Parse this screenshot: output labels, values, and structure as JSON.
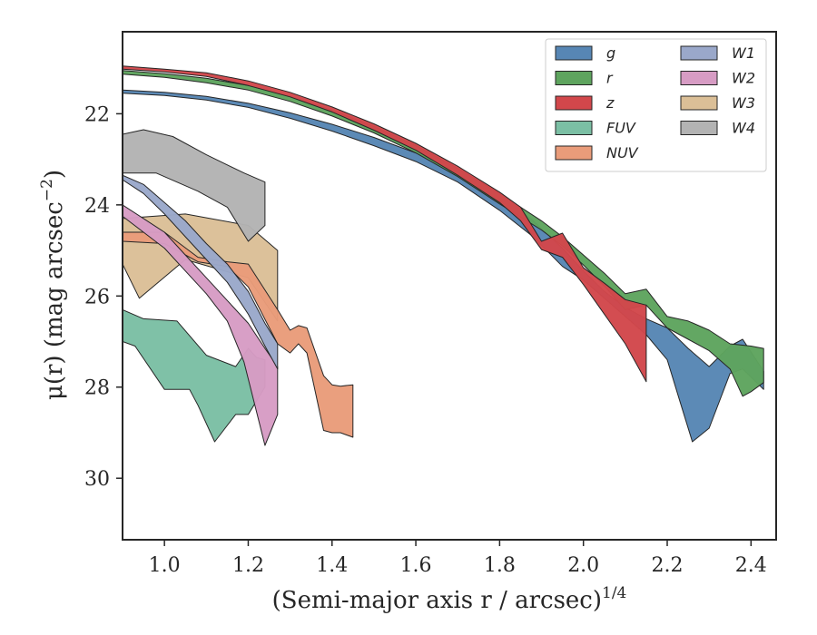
{
  "chart_data": {
    "type": "area",
    "xlabel": "(Semi-major axis r / arcsec)",
    "xlabel_sup": "1/4",
    "ylabel": "μ(r) (mag arcsec",
    "ylabel_sup": "−2",
    "ylabel_end": ")",
    "xlim": [
      0.9,
      2.46
    ],
    "ylim": [
      31.35,
      20.2
    ],
    "y_inverted": true,
    "grid": false,
    "legend_position": "top-right",
    "legend_columns": 2,
    "xticks": [
      1.0,
      1.2,
      1.4,
      1.6,
      1.8,
      2.0,
      2.2,
      2.4
    ],
    "xtick_labels": [
      "1.0",
      "1.2",
      "1.4",
      "1.6",
      "1.8",
      "2.0",
      "2.2",
      "2.4"
    ],
    "yticks": [
      22,
      24,
      26,
      28,
      30
    ],
    "ytick_labels": [
      "22",
      "24",
      "26",
      "28",
      "30"
    ],
    "series": [
      {
        "name": "W3",
        "color": "#dbbf97",
        "upper": [
          [
            0.9,
            24.3
          ],
          [
            1.05,
            24.2
          ],
          [
            1.2,
            24.45
          ],
          [
            1.27,
            25.0
          ]
        ],
        "lower": [
          [
            0.9,
            25.3
          ],
          [
            0.94,
            26.05
          ],
          [
            1.05,
            25.2
          ],
          [
            1.2,
            25.6
          ],
          [
            1.27,
            26.55
          ]
        ]
      },
      {
        "name": "W4",
        "color": "#b3b3b3",
        "upper": [
          [
            0.9,
            22.45
          ],
          [
            0.95,
            22.35
          ],
          [
            1.02,
            22.5
          ],
          [
            1.1,
            22.9
          ],
          [
            1.19,
            23.3
          ],
          [
            1.24,
            23.5
          ]
        ],
        "lower": [
          [
            0.9,
            23.3
          ],
          [
            0.98,
            23.3
          ],
          [
            1.08,
            23.7
          ],
          [
            1.15,
            24.05
          ],
          [
            1.2,
            24.8
          ],
          [
            1.24,
            24.45
          ]
        ]
      },
      {
        "name": "FUV",
        "color": "#7bbfa4",
        "upper": [
          [
            0.9,
            26.3
          ],
          [
            0.95,
            26.5
          ],
          [
            1.03,
            26.55
          ],
          [
            1.1,
            27.3
          ],
          [
            1.17,
            27.55
          ],
          [
            1.2,
            27.15
          ],
          [
            1.22,
            27.35
          ],
          [
            1.24,
            27.4
          ]
        ],
        "lower": [
          [
            0.9,
            27.0
          ],
          [
            0.93,
            27.1
          ],
          [
            1.0,
            28.05
          ],
          [
            1.06,
            28.05
          ],
          [
            1.08,
            28.4
          ],
          [
            1.12,
            29.2
          ],
          [
            1.17,
            28.6
          ],
          [
            1.2,
            28.6
          ],
          [
            1.24,
            28.0
          ]
        ]
      },
      {
        "name": "NUV",
        "color": "#e99c7a",
        "upper": [
          [
            0.9,
            24.6
          ],
          [
            1.0,
            24.6
          ],
          [
            1.08,
            25.15
          ],
          [
            1.15,
            25.25
          ],
          [
            1.2,
            25.3
          ],
          [
            1.27,
            26.3
          ],
          [
            1.3,
            26.75
          ],
          [
            1.32,
            26.65
          ],
          [
            1.34,
            26.7
          ],
          [
            1.38,
            27.75
          ],
          [
            1.4,
            27.95
          ],
          [
            1.42,
            27.98
          ],
          [
            1.45,
            27.95
          ]
        ],
        "lower": [
          [
            0.9,
            24.8
          ],
          [
            1.0,
            24.85
          ],
          [
            1.08,
            25.25
          ],
          [
            1.15,
            25.35
          ],
          [
            1.2,
            25.8
          ],
          [
            1.27,
            27.05
          ],
          [
            1.3,
            27.25
          ],
          [
            1.32,
            27.05
          ],
          [
            1.34,
            27.25
          ],
          [
            1.38,
            28.95
          ],
          [
            1.4,
            29.0
          ],
          [
            1.42,
            29.0
          ],
          [
            1.45,
            29.1
          ]
        ]
      },
      {
        "name": "W2",
        "color": "#d79cc4",
        "upper": [
          [
            0.9,
            24.0
          ],
          [
            0.95,
            24.3
          ],
          [
            1.0,
            24.6
          ],
          [
            1.05,
            25.1
          ],
          [
            1.1,
            25.6
          ],
          [
            1.15,
            26.1
          ],
          [
            1.2,
            26.6
          ],
          [
            1.24,
            27.15
          ],
          [
            1.27,
            27.55
          ]
        ],
        "lower": [
          [
            0.9,
            24.25
          ],
          [
            0.95,
            24.6
          ],
          [
            1.0,
            24.95
          ],
          [
            1.05,
            25.45
          ],
          [
            1.1,
            25.95
          ],
          [
            1.15,
            26.55
          ],
          [
            1.19,
            27.45
          ],
          [
            1.22,
            28.55
          ],
          [
            1.24,
            29.28
          ],
          [
            1.27,
            28.6
          ]
        ]
      },
      {
        "name": "W1",
        "color": "#9aa8ca",
        "upper": [
          [
            0.9,
            23.35
          ],
          [
            0.95,
            23.55
          ],
          [
            1.0,
            23.95
          ],
          [
            1.05,
            24.35
          ],
          [
            1.1,
            24.85
          ],
          [
            1.15,
            25.3
          ],
          [
            1.2,
            25.9
          ],
          [
            1.24,
            26.6
          ],
          [
            1.27,
            27.05
          ]
        ],
        "lower": [
          [
            0.9,
            23.45
          ],
          [
            0.95,
            23.75
          ],
          [
            1.0,
            24.2
          ],
          [
            1.05,
            24.7
          ],
          [
            1.1,
            25.2
          ],
          [
            1.15,
            25.7
          ],
          [
            1.2,
            26.4
          ],
          [
            1.24,
            27.1
          ],
          [
            1.27,
            27.6
          ]
        ]
      },
      {
        "name": "g",
        "color": "#5786b4",
        "upper": [
          [
            0.9,
            21.48
          ],
          [
            1.0,
            21.53
          ],
          [
            1.1,
            21.62
          ],
          [
            1.2,
            21.77
          ],
          [
            1.3,
            21.98
          ],
          [
            1.4,
            22.23
          ],
          [
            1.5,
            22.52
          ],
          [
            1.6,
            22.86
          ],
          [
            1.7,
            23.25
          ],
          [
            1.8,
            23.77
          ],
          [
            1.88,
            24.35
          ],
          [
            1.95,
            24.95
          ],
          [
            2.0,
            25.45
          ],
          [
            2.05,
            25.9
          ],
          [
            2.1,
            26.25
          ],
          [
            2.15,
            26.5
          ],
          [
            2.2,
            26.7
          ],
          [
            2.25,
            27.15
          ],
          [
            2.3,
            27.55
          ],
          [
            2.35,
            27.1
          ],
          [
            2.38,
            26.95
          ],
          [
            2.43,
            27.65
          ]
        ],
        "lower": [
          [
            0.9,
            21.55
          ],
          [
            1.0,
            21.6
          ],
          [
            1.1,
            21.7
          ],
          [
            1.2,
            21.86
          ],
          [
            1.3,
            22.1
          ],
          [
            1.4,
            22.38
          ],
          [
            1.5,
            22.7
          ],
          [
            1.6,
            23.05
          ],
          [
            1.7,
            23.5
          ],
          [
            1.8,
            24.12
          ],
          [
            1.88,
            24.7
          ],
          [
            1.95,
            25.35
          ],
          [
            2.0,
            25.65
          ],
          [
            2.05,
            26.05
          ],
          [
            2.1,
            26.45
          ],
          [
            2.15,
            26.85
          ],
          [
            2.2,
            27.4
          ],
          [
            2.23,
            28.3
          ],
          [
            2.26,
            29.2
          ],
          [
            2.3,
            28.9
          ],
          [
            2.35,
            27.7
          ],
          [
            2.38,
            27.6
          ],
          [
            2.43,
            28.05
          ]
        ]
      },
      {
        "name": "r",
        "color": "#5ea45e",
        "upper": [
          [
            0.9,
            21.05
          ],
          [
            1.0,
            21.12
          ],
          [
            1.1,
            21.22
          ],
          [
            1.2,
            21.38
          ],
          [
            1.3,
            21.62
          ],
          [
            1.4,
            21.92
          ],
          [
            1.5,
            22.28
          ],
          [
            1.6,
            22.7
          ],
          [
            1.7,
            23.2
          ],
          [
            1.8,
            23.75
          ],
          [
            1.9,
            24.35
          ],
          [
            1.95,
            24.7
          ],
          [
            2.0,
            25.1
          ],
          [
            2.05,
            25.5
          ],
          [
            2.1,
            25.95
          ],
          [
            2.15,
            25.85
          ],
          [
            2.2,
            26.45
          ],
          [
            2.25,
            26.55
          ],
          [
            2.3,
            26.75
          ],
          [
            2.35,
            27.05
          ],
          [
            2.4,
            27.1
          ],
          [
            2.43,
            27.15
          ]
        ],
        "lower": [
          [
            0.9,
            21.13
          ],
          [
            1.0,
            21.2
          ],
          [
            1.1,
            21.32
          ],
          [
            1.2,
            21.48
          ],
          [
            1.3,
            21.73
          ],
          [
            1.4,
            22.05
          ],
          [
            1.5,
            22.42
          ],
          [
            1.6,
            22.86
          ],
          [
            1.7,
            23.38
          ],
          [
            1.8,
            23.98
          ],
          [
            1.9,
            24.55
          ],
          [
            1.95,
            24.9
          ],
          [
            2.0,
            25.32
          ],
          [
            2.05,
            25.78
          ],
          [
            2.1,
            26.3
          ],
          [
            2.15,
            26.2
          ],
          [
            2.2,
            26.7
          ],
          [
            2.25,
            26.95
          ],
          [
            2.3,
            27.2
          ],
          [
            2.35,
            27.6
          ],
          [
            2.38,
            28.2
          ],
          [
            2.4,
            28.1
          ],
          [
            2.43,
            27.9
          ]
        ]
      },
      {
        "name": "z",
        "color": "#d2474b",
        "upper": [
          [
            0.9,
            20.95
          ],
          [
            1.0,
            21.02
          ],
          [
            1.1,
            21.1
          ],
          [
            1.2,
            21.28
          ],
          [
            1.3,
            21.53
          ],
          [
            1.4,
            21.85
          ],
          [
            1.5,
            22.22
          ],
          [
            1.6,
            22.65
          ],
          [
            1.7,
            23.15
          ],
          [
            1.8,
            23.72
          ],
          [
            1.85,
            24.05
          ],
          [
            1.9,
            24.8
          ],
          [
            1.95,
            24.62
          ],
          [
            2.0,
            25.38
          ],
          [
            2.05,
            25.72
          ],
          [
            2.1,
            26.08
          ],
          [
            2.15,
            26.2
          ]
        ],
        "lower": [
          [
            0.9,
            21.02
          ],
          [
            1.0,
            21.08
          ],
          [
            1.1,
            21.18
          ],
          [
            1.2,
            21.38
          ],
          [
            1.3,
            21.63
          ],
          [
            1.4,
            21.96
          ],
          [
            1.5,
            22.36
          ],
          [
            1.6,
            22.8
          ],
          [
            1.7,
            23.35
          ],
          [
            1.8,
            23.95
          ],
          [
            1.85,
            24.35
          ],
          [
            1.9,
            24.98
          ],
          [
            1.95,
            25.15
          ],
          [
            2.0,
            25.75
          ],
          [
            2.05,
            26.4
          ],
          [
            2.1,
            27.05
          ],
          [
            2.15,
            27.88
          ]
        ]
      }
    ],
    "legend": [
      {
        "name": "g",
        "color": "#5786b4"
      },
      {
        "name": "r",
        "color": "#5ea45e"
      },
      {
        "name": "z",
        "color": "#d2474b"
      },
      {
        "name": "FUV",
        "color": "#7bbfa4"
      },
      {
        "name": "NUV",
        "color": "#e99c7a"
      },
      {
        "name": "W1",
        "color": "#9aa8ca"
      },
      {
        "name": "W2",
        "color": "#d79cc4"
      },
      {
        "name": "W3",
        "color": "#dbbf97"
      },
      {
        "name": "W4",
        "color": "#b3b3b3"
      }
    ]
  }
}
